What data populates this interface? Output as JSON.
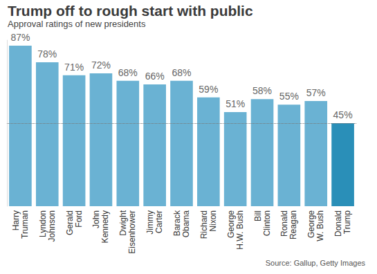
{
  "chart_data": {
    "type": "bar",
    "title": "Trump off to rough start with public",
    "subtitle": "Approval ratings of new presidents",
    "source": "Source: Gallup, Getty Images",
    "categories": [
      "Harry Truman",
      "Lyndon Johnson",
      "Gerald Ford",
      "John Kennedy",
      "Dwight Eisenhower",
      "Jimmy Carter",
      "Barack Obama",
      "Richard Nixon",
      "George H.W. Bush",
      "Bill Clinton",
      "Ronald Reagan",
      "George W. Bush",
      "Donald Trump"
    ],
    "values": [
      87,
      78,
      71,
      72,
      68,
      66,
      68,
      59,
      51,
      58,
      55,
      57,
      45
    ],
    "value_labels": [
      "87%",
      "78%",
      "71%",
      "72%",
      "68%",
      "66%",
      "68%",
      "59%",
      "51%",
      "58%",
      "55%",
      "57%",
      "45%"
    ],
    "colors": [
      "#6ab2d3",
      "#6ab2d3",
      "#6ab2d3",
      "#6ab2d3",
      "#6ab2d3",
      "#6ab2d3",
      "#6ab2d3",
      "#6ab2d3",
      "#6ab2d3",
      "#6ab2d3",
      "#6ab2d3",
      "#6ab2d3",
      "#2a8fb8"
    ],
    "reference_line": 45,
    "ylim": [
      0,
      90
    ],
    "yticks": [],
    "grid": false,
    "data_labels": true,
    "tick_labels": "x"
  }
}
